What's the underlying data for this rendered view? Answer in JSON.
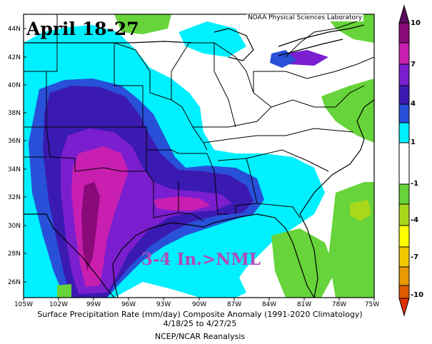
{
  "map": {
    "title": "April 18-27",
    "credit": "NOAA Physical Sciences Laboratory",
    "annotation": "3-4 In.>NML",
    "lat_ticks": [
      "44N",
      "42N",
      "40N",
      "38N",
      "36N",
      "34N",
      "32N",
      "30N",
      "28N",
      "26N"
    ],
    "lon_ticks": [
      "105W",
      "102W",
      "99W",
      "96W",
      "93W",
      "90W",
      "87W",
      "84W",
      "81W",
      "78W",
      "75W"
    ],
    "caption_line1": "Surface Precipitation Rate (mm/day) Composite Anomaly (1991-2020 Climatology)",
    "caption_line2": "4/18/25 to 4/27/25",
    "caption_line3": "NCEP/NCAR Reanalysis",
    "colors": {
      "strong_wet": "#8a0a7a",
      "very_wet": "#c81fb1",
      "wet_purple": "#7a1ed0",
      "wet_indigo": "#3a1ab0",
      "wet_blue": "#2850d8",
      "light_wet": "#00f0ff",
      "neutral": "#ffffff",
      "dry_green": "#66d43a",
      "dry_yellow_green": "#a8d81a",
      "dry_yellow": "#ffff00",
      "dry_orange": "#e89a00",
      "dry_red": "#e03000"
    }
  },
  "colorbar": {
    "labels": [
      "10",
      "7",
      "4",
      "1",
      "-1",
      "-4",
      "-7",
      "-10"
    ]
  }
}
